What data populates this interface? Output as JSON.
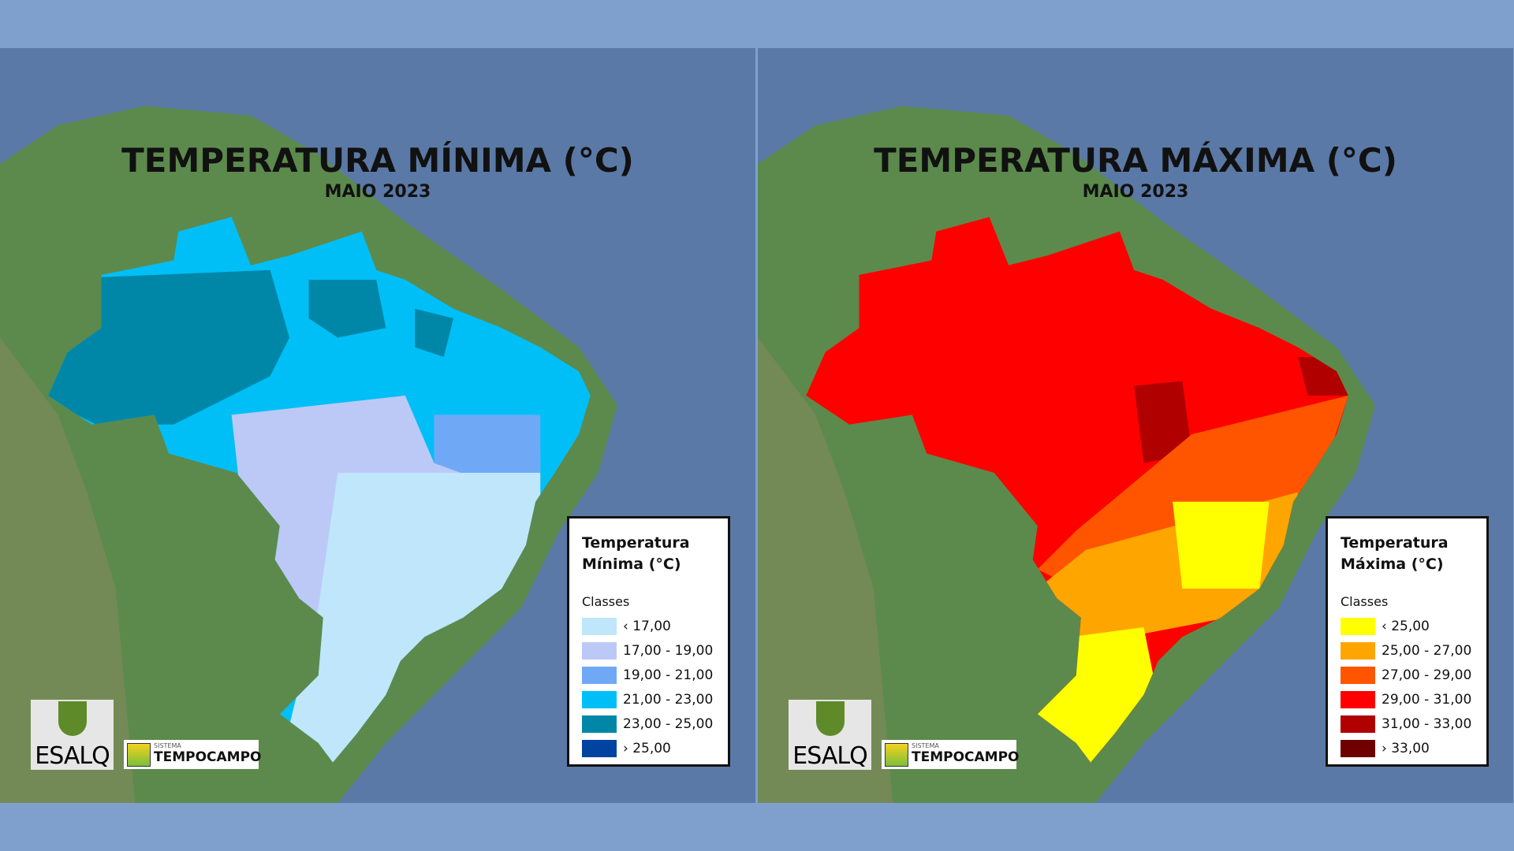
{
  "panels": [
    {
      "title": "TEMPERATURA MÍNIMA (°C)",
      "subtitle": "MAIO 2023",
      "legend": {
        "title_line1": "Temperatura",
        "title_line2": "Mínima (°C)",
        "classes_label": "Classes",
        "items": [
          {
            "label": "‹ 17,00",
            "color": "#bfe6fb"
          },
          {
            "label": "17,00 - 19,00",
            "color": "#bcc9f7"
          },
          {
            "label": "19,00 - 21,00",
            "color": "#6fa9f6"
          },
          {
            "label": "21,00 - 23,00",
            "color": "#00bff7"
          },
          {
            "label": "23,00 - 25,00",
            "color": "#0087a8"
          },
          {
            "label": "› 25,00",
            "color": "#0043a0"
          }
        ]
      }
    },
    {
      "title": "TEMPERATURA MÁXIMA (°C)",
      "subtitle": "MAIO 2023",
      "legend": {
        "title_line1": "Temperatura",
        "title_line2": "Máxima (°C)",
        "classes_label": "Classes",
        "items": [
          {
            "label": "‹ 25,00",
            "color": "#ffff00"
          },
          {
            "label": "25,00 - 27,00",
            "color": "#ffa500"
          },
          {
            "label": "27,00 - 29,00",
            "color": "#ff5500"
          },
          {
            "label": "29,00 - 31,00",
            "color": "#ff0000"
          },
          {
            "label": "31,00 - 33,00",
            "color": "#b00000"
          },
          {
            "label": "› 33,00",
            "color": "#6e0000"
          }
        ]
      }
    }
  ],
  "logos": {
    "esalq": "ESALQ",
    "tempocampo_small": "SISTEMA",
    "tempocampo": "TEMPOCAMPO"
  }
}
